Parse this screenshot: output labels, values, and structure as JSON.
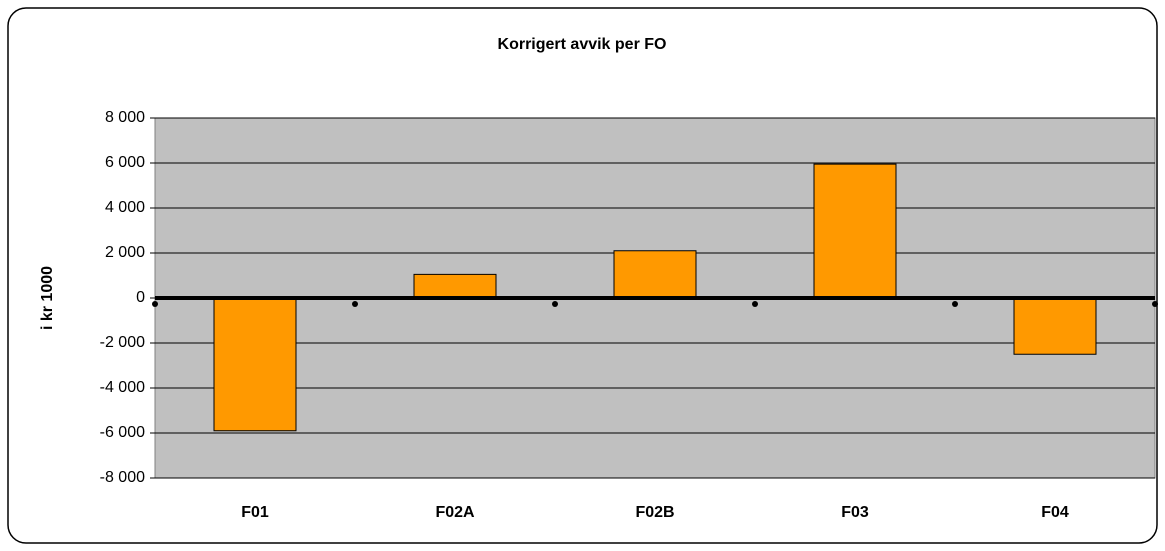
{
  "chart_data": {
    "type": "bar",
    "title": "Korrigert avvik per FO",
    "y_label": "i kr 1000",
    "categories": [
      "F01",
      "F02A",
      "F02B",
      "F03",
      "F04"
    ],
    "values": [
      -5900,
      1050,
      2100,
      5950,
      -2500
    ],
    "color": "#ff9900",
    "ylim": [
      -8000,
      8000
    ],
    "yticks": [
      {
        "value": -8000,
        "label": "-8 000"
      },
      {
        "value": -6000,
        "label": "-6 000"
      },
      {
        "value": -4000,
        "label": "-4 000"
      },
      {
        "value": -2000,
        "label": "-2 000"
      },
      0,
      {
        "value": 2000,
        "label": "2 000"
      },
      {
        "value": 4000,
        "label": "4 000"
      },
      {
        "value": 6000,
        "label": "6 000"
      },
      {
        "value": 8000,
        "label": "8 000"
      }
    ],
    "grid": true
  }
}
